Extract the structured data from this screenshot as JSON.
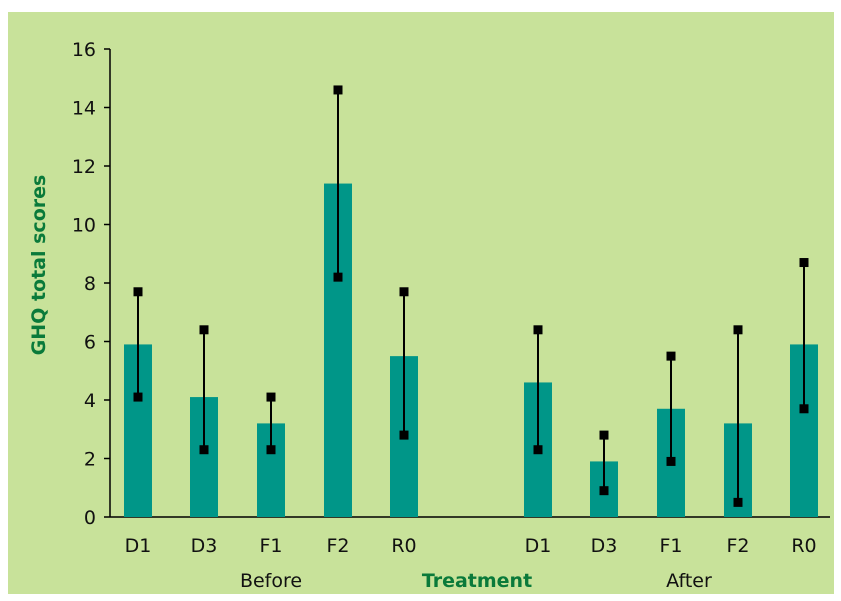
{
  "chart_data": {
    "type": "bar",
    "ylabel": "GHQ total scores",
    "xlabel": "Treatment",
    "ylim": [
      0,
      16
    ],
    "yticks": [
      0,
      2,
      4,
      6,
      8,
      10,
      12,
      14,
      16
    ],
    "groups": [
      {
        "label": "Before",
        "categories": [
          "D1",
          "D3",
          "F1",
          "F2",
          "R0"
        ],
        "values": [
          5.9,
          4.1,
          3.2,
          11.4,
          5.5
        ],
        "error_low": [
          4.1,
          2.3,
          2.3,
          8.2,
          2.8
        ],
        "error_high": [
          7.7,
          6.4,
          4.1,
          14.6,
          7.7
        ]
      },
      {
        "label": "After",
        "categories": [
          "D1",
          "D3",
          "F1",
          "F2",
          "R0"
        ],
        "values": [
          4.6,
          1.9,
          3.7,
          3.2,
          5.9
        ],
        "error_low": [
          2.3,
          0.9,
          1.9,
          0.5,
          3.7
        ],
        "error_high": [
          6.4,
          2.8,
          5.5,
          6.4,
          8.7
        ]
      }
    ],
    "bar_color": "#009688",
    "error_color": "#000000",
    "background_color": "#c8e29a",
    "axis_title_color": "#0a7a3a",
    "grid": false
  }
}
